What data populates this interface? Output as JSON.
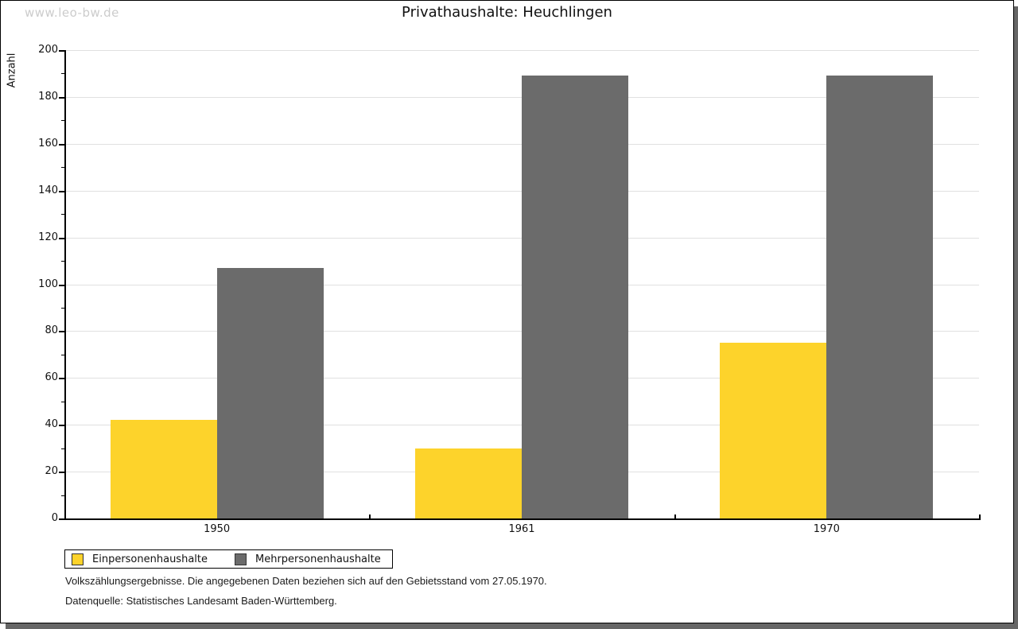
{
  "watermark": "www.leo-bw.de",
  "title": "Privathaushalte: Heuchlingen",
  "chart_data": {
    "type": "bar",
    "title": "Privathaushalte: Heuchlingen",
    "categories": [
      "1950",
      "1961",
      "1970"
    ],
    "series": [
      {
        "name": "Einpersonenhaushalte",
        "color": "#fdd32b",
        "values": [
          42,
          30,
          75
        ]
      },
      {
        "name": "Mehrpersonenhaushalte",
        "color": "#6b6b6b",
        "values": [
          107,
          189,
          189
        ]
      }
    ],
    "xlabel": "",
    "ylabel": "Anzahl",
    "ylim": [
      0,
      200
    ],
    "yticks": [
      0,
      20,
      40,
      60,
      80,
      100,
      120,
      140,
      160,
      180,
      200
    ],
    "minor_tick_step": 10,
    "grid": true,
    "legend_position": "bottom-left"
  },
  "footnotes": {
    "line1": "Volkszählungsergebnisse. Die angegebenen Daten beziehen sich auf den Gebietsstand vom 27.05.1970.",
    "line2": "Datenquelle: Statistisches Landesamt Baden-Württemberg."
  },
  "colors": {
    "grid": "#e0e0e0",
    "axis": "#000000",
    "watermark": "#cccccc",
    "shadow": "#666666",
    "page_background": "#ffffff",
    "page_border": "#000000"
  }
}
